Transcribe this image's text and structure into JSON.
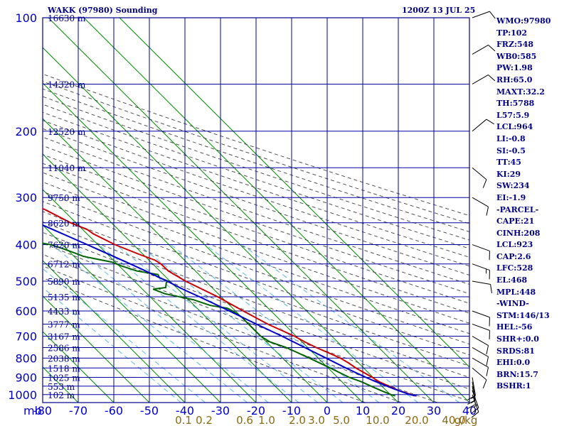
{
  "header": {
    "title": "WAKK (97980) Sounding",
    "datetime": "1200Z 13 JUL 25"
  },
  "indices": [
    "WMO:97980",
    "TP:102",
    "FRZ:548",
    "WB0:585",
    "PW:1.98",
    "RH:65.0",
    "MAXT:32.2",
    "TH:5788",
    "L57:5.9",
    "LCL:964",
    "LI:-0.8",
    "SI:-0.5",
    "TT:45",
    "KI:29",
    "SW:234",
    "EI:-1.9",
    "-PARCEL-",
    "CAPE:21",
    "CINH:208",
    "LCL:923",
    "CAP:2.6",
    "LFC:528",
    "EL:468",
    "MPL:448",
    "-WIND-",
    "STM:146/13",
    "HEL:-56",
    "SHR+:0.0",
    "SRDS:81",
    "EHI:0.0",
    "BRN:15.7",
    "BSHR:1"
  ],
  "colors": {
    "frame": "#00008b",
    "grid": "#0000a0",
    "isotherm": "#008800",
    "mixing_ratio": "#5bb8e8",
    "dry_adiabat": "#404040",
    "temperature": "#cc0000",
    "dewpoint": "#006400",
    "parcel": "#0000cc",
    "axis_text": "#0000cc",
    "height_text": "#00008b",
    "wind_barb": "#000000"
  },
  "chart_data": {
    "type": "line",
    "title": "WAKK (97980) Sounding",
    "subtitle": "1200Z 13 JUL 25",
    "x_unit_label": "mb",
    "pressure_ticks": [
      100,
      200,
      300,
      400,
      500,
      600,
      700,
      800,
      900,
      1000
    ],
    "temperature_ticks": [
      -80,
      -70,
      -60,
      -50,
      -40,
      -30,
      -20,
      -10,
      0,
      10,
      20,
      30,
      40
    ],
    "mixing_ratio_labels": [
      "0.1",
      "0.2",
      "0.6",
      "1.0",
      "2.0",
      "3.0",
      "5.0",
      "10.0",
      "20.0",
      "40.0",
      "g/kg"
    ],
    "height_labels": [
      {
        "p": 100,
        "label": "16630 m"
      },
      {
        "p": 150,
        "label": "14320 m"
      },
      {
        "p": 200,
        "label": "12520 m"
      },
      {
        "p": 250,
        "label": "11040 m"
      },
      {
        "p": 300,
        "label": "9750 m"
      },
      {
        "p": 350,
        "label": "8620 m"
      },
      {
        "p": 400,
        "label": "7620 m"
      },
      {
        "p": 450,
        "label": "6712 m"
      },
      {
        "p": 500,
        "label": "5890 m"
      },
      {
        "p": 550,
        "label": "5135 m"
      },
      {
        "p": 600,
        "label": "4433 m"
      },
      {
        "p": 650,
        "label": "3777 m"
      },
      {
        "p": 700,
        "label": "3167 m"
      },
      {
        "p": 750,
        "label": "2586 m"
      },
      {
        "p": 800,
        "label": "2038 m"
      },
      {
        "p": 850,
        "label": "1518 m"
      },
      {
        "p": 900,
        "label": "1025 m"
      },
      {
        "p": 950,
        "label": "553 m"
      },
      {
        "p": 1000,
        "label": "102 m"
      }
    ],
    "series": [
      {
        "id": "temperature",
        "points": [
          [
            1008,
            26.5
          ],
          [
            1000,
            25.9
          ],
          [
            975,
            23.5
          ],
          [
            950,
            22.0
          ],
          [
            925,
            20.5
          ],
          [
            900,
            19.8
          ],
          [
            850,
            17.8
          ],
          [
            825,
            17.2
          ],
          [
            800,
            16.2
          ],
          [
            775,
            14.4
          ],
          [
            750,
            12.4
          ],
          [
            725,
            10.8
          ],
          [
            700,
            9.5
          ],
          [
            650,
            5.4
          ],
          [
            600,
            2.2
          ],
          [
            550,
            -1.0
          ],
          [
            500,
            -5.6
          ],
          [
            470,
            -7.6
          ],
          [
            450,
            -7.7
          ],
          [
            440,
            -8.3
          ],
          [
            425,
            -11.0
          ],
          [
            400,
            -15.2
          ],
          [
            375,
            -18.2
          ],
          [
            365,
            -18.7
          ],
          [
            350,
            -21.5
          ],
          [
            325,
            -24.7
          ],
          [
            300,
            -29.0
          ],
          [
            275,
            -34.3
          ],
          [
            250,
            -38.8
          ],
          [
            225,
            -43.0
          ],
          [
            200,
            -48.0
          ],
          [
            175,
            -54.0
          ],
          [
            150,
            -60.0
          ],
          [
            125,
            -68.0
          ],
          [
            115,
            -71.0
          ],
          [
            110,
            -74.0
          ],
          [
            105,
            -76.0
          ],
          [
            102,
            -80.0
          ]
        ]
      },
      {
        "id": "dewpoint",
        "points": [
          [
            1008,
            21.0
          ],
          [
            1000,
            20.2
          ],
          [
            975,
            18.5
          ],
          [
            950,
            17.0
          ],
          [
            925,
            15.5
          ],
          [
            900,
            13.3
          ],
          [
            850,
            10.6
          ],
          [
            800,
            7.5
          ],
          [
            750,
            4.0
          ],
          [
            725,
            1.0
          ],
          [
            700,
            0.0
          ],
          [
            650,
            0.0
          ],
          [
            620,
            0.0
          ],
          [
            600,
            -0.8
          ],
          [
            590,
            -1.5
          ],
          [
            580,
            -5.5
          ],
          [
            560,
            -8.7
          ],
          [
            540,
            -15.0
          ],
          [
            525,
            -17.0
          ],
          [
            520,
            -13.0
          ],
          [
            505,
            -11.5
          ],
          [
            500,
            -10.5
          ],
          [
            490,
            -12.0
          ],
          [
            480,
            -11.5
          ],
          [
            470,
            -16.4
          ],
          [
            455,
            -19.5
          ],
          [
            445,
            -21.0
          ],
          [
            430,
            -27.3
          ],
          [
            420,
            -29.0
          ],
          [
            410,
            -31.0
          ],
          [
            400,
            -33.3
          ],
          [
            380,
            -45.0
          ],
          [
            360,
            -60.0
          ],
          [
            350,
            -60.0
          ],
          [
            330,
            -52.0
          ],
          [
            310,
            -50.0
          ],
          [
            300,
            -47.0
          ],
          [
            280,
            -47.0
          ],
          [
            270,
            -48.0
          ],
          [
            250,
            -64.0
          ],
          [
            230,
            -66.0
          ],
          [
            215,
            -66.0
          ],
          [
            200,
            -62.0
          ],
          [
            195,
            -61.0
          ],
          [
            185,
            -67.0
          ],
          [
            170,
            -67.0
          ],
          [
            160,
            -68.0
          ],
          [
            150,
            -71.0
          ],
          [
            125,
            -76.0
          ],
          [
            102,
            -80.0
          ]
        ]
      },
      {
        "id": "parcel",
        "points": [
          [
            1008,
            27.0
          ],
          [
            1000,
            25.5
          ],
          [
            964,
            22.5
          ],
          [
            923,
            19.5
          ],
          [
            900,
            18.0
          ],
          [
            850,
            15.0
          ],
          [
            800,
            12.2
          ],
          [
            750,
            9.2
          ],
          [
            700,
            6.0
          ],
          [
            650,
            2.2
          ],
          [
            600,
            -1.7
          ],
          [
            550,
            -6.1
          ],
          [
            528,
            -8.4
          ],
          [
            500,
            -10.8
          ],
          [
            468,
            -14.2
          ],
          [
            450,
            -16.3
          ],
          [
            400,
            -23.0
          ],
          [
            350,
            -30.8
          ],
          [
            300,
            -39.5
          ],
          [
            250,
            -49.0
          ],
          [
            200,
            -59.0
          ],
          [
            150,
            -70.0
          ],
          [
            125,
            -76.0
          ],
          [
            102,
            -80.0
          ]
        ]
      }
    ],
    "wind_barbs": [
      {
        "p": 1000,
        "dir": 160,
        "kt": 15
      },
      {
        "p": 975,
        "dir": 160,
        "kt": 15
      },
      {
        "p": 950,
        "dir": 170,
        "kt": 15
      },
      {
        "p": 925,
        "dir": 170,
        "kt": 15
      },
      {
        "p": 900,
        "dir": 170,
        "kt": 10
      },
      {
        "p": 850,
        "dir": 130,
        "kt": 10
      },
      {
        "p": 800,
        "dir": 120,
        "kt": 10
      },
      {
        "p": 750,
        "dir": 120,
        "kt": 10
      },
      {
        "p": 700,
        "dir": 120,
        "kt": 10
      },
      {
        "p": 650,
        "dir": 110,
        "kt": 10
      },
      {
        "p": 600,
        "dir": 110,
        "kt": 10
      },
      {
        "p": 500,
        "dir": 100,
        "kt": 10
      },
      {
        "p": 450,
        "dir": 110,
        "kt": 15
      },
      {
        "p": 400,
        "dir": 110,
        "kt": 10
      },
      {
        "p": 300,
        "dir": 120,
        "kt": 10
      },
      {
        "p": 250,
        "dir": 130,
        "kt": 10
      },
      {
        "p": 200,
        "dir": 50,
        "kt": 10
      },
      {
        "p": 150,
        "dir": 60,
        "kt": 10
      },
      {
        "p": 125,
        "dir": 60,
        "kt": 10
      },
      {
        "p": 100,
        "dir": 70,
        "kt": 10
      }
    ]
  }
}
